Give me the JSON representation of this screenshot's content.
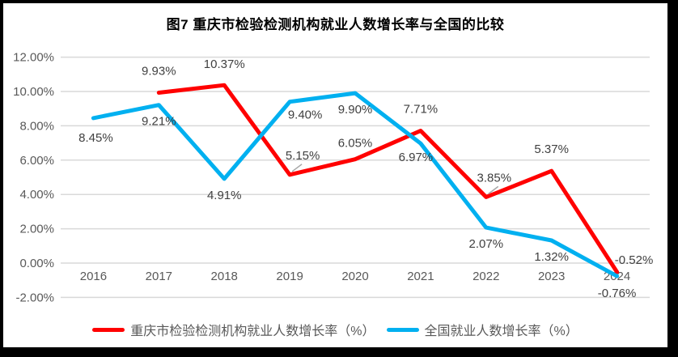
{
  "chart_data": {
    "type": "line",
    "title": "图7 重庆市检验检测机构就业人数增长率与全国的比较",
    "categories": [
      "2016",
      "2017",
      "2018",
      "2019",
      "2020",
      "2021",
      "2022",
      "2023",
      "2024"
    ],
    "series": [
      {
        "name": "重庆市检验检测机构就业人数增长率（%）",
        "color": "#FF0000",
        "values": [
          null,
          9.93,
          10.37,
          5.15,
          6.05,
          7.71,
          3.85,
          5.37,
          -0.52
        ],
        "labels": [
          "",
          "9.93%",
          "10.37%",
          "5.15%",
          "6.05%",
          "7.71%",
          "3.85%",
          "5.37%",
          "-0.52%"
        ]
      },
      {
        "name": "全国就业人数增长率（%）",
        "color": "#00B0F0",
        "values": [
          8.45,
          9.21,
          4.91,
          9.4,
          9.9,
          6.97,
          2.07,
          1.32,
          -0.76
        ],
        "labels": [
          "8.45%",
          "9.21%",
          "4.91%",
          "9.40%",
          "9.90%",
          "6.97%",
          "2.07%",
          "1.32%",
          "-0.76%"
        ]
      }
    ],
    "y_axis": {
      "min": -2,
      "max": 12,
      "step": 2,
      "tick_labels": [
        "12.00%",
        "10.00%",
        "8.00%",
        "6.00%",
        "4.00%",
        "2.00%",
        "0.00%",
        "-2.00%"
      ]
    },
    "grid": true,
    "legend_position": "bottom",
    "colors": {
      "gridline": "#D9D9D9",
      "axis_text": "#595959",
      "data_label_text": "#404040",
      "leader_line": "#A6A6A6",
      "frame_border": "#000000",
      "background": "#FFFFFF"
    }
  }
}
